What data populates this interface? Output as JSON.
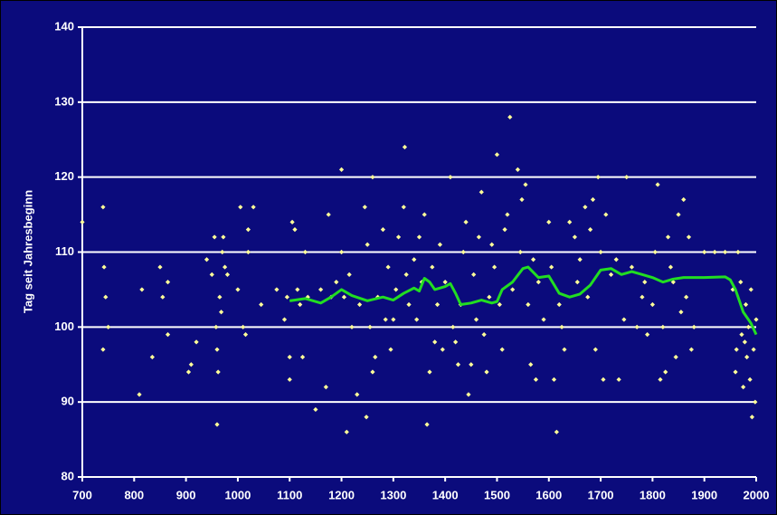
{
  "chart_data": {
    "type": "scatter",
    "y_label": "Tag seit Jahresbeginn",
    "xlim": [
      700,
      2000
    ],
    "xticks": [
      700,
      800,
      900,
      1000,
      1100,
      1200,
      1300,
      1400,
      1500,
      1600,
      1700,
      1800,
      1900,
      2000
    ],
    "ylim": [
      80,
      140
    ],
    "yticks": [
      80,
      90,
      100,
      110,
      120,
      130,
      140
    ],
    "grid": true,
    "series": [
      {
        "color": "#ffff99",
        "marker": "diamond",
        "x": [
          700,
          740,
          740,
          742,
          745,
          750,
          810,
          815,
          835,
          850,
          855,
          865,
          865,
          905,
          910,
          920,
          940,
          950,
          955,
          958,
          960,
          960,
          962,
          965,
          968,
          970,
          972,
          975,
          980,
          1000,
          1005,
          1010,
          1015,
          1020,
          1020,
          1030,
          1045,
          1075,
          1090,
          1095,
          1100,
          1100,
          1105,
          1110,
          1115,
          1120,
          1125,
          1130,
          1135,
          1150,
          1160,
          1170,
          1175,
          1180,
          1190,
          1200,
          1200,
          1205,
          1210,
          1215,
          1220,
          1230,
          1235,
          1245,
          1248,
          1250,
          1255,
          1260,
          1260,
          1265,
          1270,
          1280,
          1285,
          1290,
          1295,
          1300,
          1305,
          1310,
          1320,
          1322,
          1325,
          1330,
          1340,
          1345,
          1350,
          1355,
          1360,
          1365,
          1370,
          1375,
          1380,
          1385,
          1390,
          1395,
          1400,
          1410,
          1415,
          1420,
          1425,
          1430,
          1435,
          1440,
          1445,
          1450,
          1455,
          1460,
          1465,
          1470,
          1475,
          1480,
          1485,
          1490,
          1495,
          1500,
          1505,
          1510,
          1515,
          1520,
          1525,
          1530,
          1540,
          1545,
          1548,
          1555,
          1560,
          1565,
          1570,
          1575,
          1580,
          1590,
          1600,
          1605,
          1610,
          1615,
          1620,
          1625,
          1630,
          1640,
          1650,
          1655,
          1660,
          1670,
          1675,
          1680,
          1685,
          1690,
          1695,
          1700,
          1705,
          1710,
          1720,
          1730,
          1735,
          1745,
          1750,
          1760,
          1770,
          1780,
          1785,
          1790,
          1800,
          1805,
          1810,
          1815,
          1820,
          1825,
          1830,
          1835,
          1840,
          1845,
          1850,
          1855,
          1860,
          1865,
          1870,
          1875,
          1880,
          1900,
          1920,
          1940,
          1955,
          1960,
          1962,
          1965,
          1970,
          1972,
          1975,
          1978,
          1980,
          1982,
          1985,
          1988,
          1990,
          1992,
          1995,
          1998,
          2000
        ],
        "values": [
          114,
          116,
          97,
          108,
          104,
          100,
          91,
          105,
          96,
          108,
          104,
          99,
          106,
          94,
          95,
          98,
          109,
          107,
          112,
          100,
          97,
          87,
          94,
          104,
          102,
          110,
          112,
          108,
          107,
          105,
          116,
          100,
          99,
          110,
          113,
          116,
          103,
          105,
          101,
          104,
          96,
          93,
          114,
          113,
          105,
          103,
          96,
          110,
          104,
          89,
          105,
          92,
          115,
          104,
          106,
          121,
          110,
          104,
          86,
          107,
          100,
          91,
          103,
          116,
          88,
          111,
          100,
          120,
          94,
          96,
          104,
          113,
          101,
          108,
          97,
          101,
          105,
          112,
          116,
          124,
          107,
          103,
          109,
          101,
          112,
          106,
          115,
          87,
          94,
          108,
          98,
          103,
          111,
          97,
          106,
          120,
          100,
          98,
          95,
          103,
          110,
          114,
          91,
          95,
          107,
          101,
          112,
          118,
          99,
          94,
          104,
          111,
          108,
          123,
          103,
          97,
          113,
          115,
          128,
          105,
          121,
          110,
          117,
          119,
          103,
          95,
          109,
          93,
          106,
          101,
          114,
          108,
          93,
          86,
          103,
          100,
          97,
          114,
          112,
          106,
          109,
          116,
          104,
          113,
          117,
          97,
          120,
          110,
          93,
          115,
          107,
          109,
          93,
          101,
          120,
          108,
          100,
          104,
          106,
          99,
          103,
          110,
          119,
          93,
          100,
          94,
          112,
          108,
          106,
          96,
          115,
          102,
          117,
          104,
          112,
          97,
          100,
          110,
          110,
          110,
          105,
          94,
          97,
          110,
          106,
          99,
          92,
          98,
          103,
          96,
          100,
          93,
          105,
          88,
          97,
          90,
          101
        ]
      },
      {
        "color": "#22dd22",
        "marker": "line",
        "x": [
          1100,
          1130,
          1160,
          1180,
          1200,
          1220,
          1250,
          1280,
          1300,
          1320,
          1340,
          1350,
          1360,
          1370,
          1380,
          1400,
          1410,
          1420,
          1430,
          1450,
          1470,
          1490,
          1500,
          1510,
          1530,
          1550,
          1560,
          1580,
          1600,
          1620,
          1640,
          1660,
          1680,
          1700,
          1720,
          1740,
          1760,
          1780,
          1800,
          1820,
          1840,
          1860,
          1900,
          1940,
          1950,
          1960,
          1975,
          1990,
          2000
        ],
        "values": [
          103.5,
          103.8,
          103.2,
          104,
          105,
          104.2,
          103.5,
          104,
          103.6,
          104.5,
          105.2,
          104.8,
          106.5,
          106,
          105,
          105.4,
          105.8,
          104.5,
          103,
          103.2,
          103.6,
          103.2,
          103.4,
          105,
          106,
          107.8,
          108,
          106.6,
          106.8,
          104.5,
          104,
          104.4,
          105.6,
          107.6,
          107.8,
          107,
          107.4,
          107,
          106.6,
          106,
          106.4,
          106.6,
          106.6,
          106.7,
          106.3,
          105,
          102,
          100.5,
          99
        ]
      }
    ]
  }
}
